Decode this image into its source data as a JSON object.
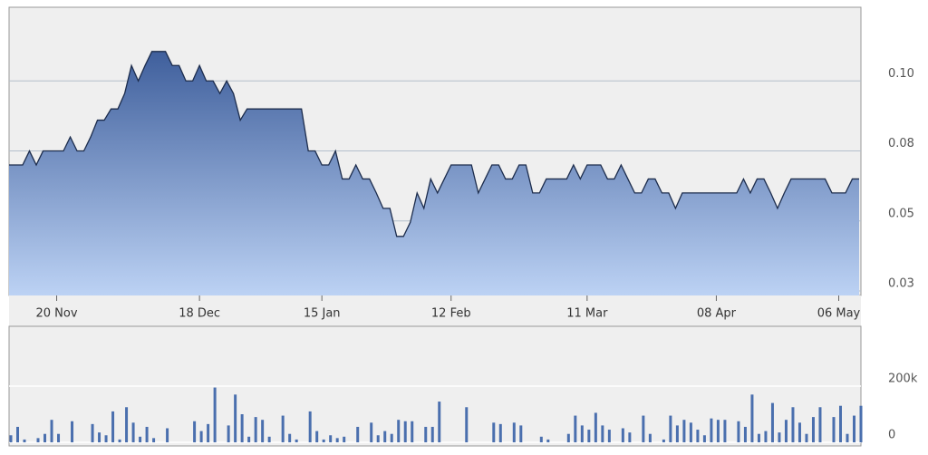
{
  "chart_data": [
    {
      "type": "area",
      "color": "#3f5f9c",
      "line_color": "#1c2c4c",
      "grid": true,
      "categories": [
        null,
        null,
        null,
        null,
        null,
        null,
        null,
        "20 Nov",
        null,
        null,
        null,
        null,
        null,
        null,
        null,
        null,
        null,
        null,
        null,
        null,
        null,
        null,
        null,
        null,
        null,
        null,
        null,
        null,
        "18 Dec",
        null,
        null,
        null,
        null,
        null,
        null,
        null,
        null,
        null,
        null,
        null,
        null,
        null,
        null,
        null,
        null,
        null,
        "15 Jan",
        null,
        null,
        null,
        null,
        null,
        null,
        null,
        null,
        null,
        null,
        null,
        null,
        null,
        null,
        null,
        null,
        null,
        null,
        "12 Feb",
        null,
        null,
        null,
        null,
        null,
        null,
        null,
        null,
        null,
        null,
        null,
        null,
        null,
        null,
        null,
        null,
        null,
        null,
        null,
        "11 Mar",
        null,
        null,
        null,
        null,
        null,
        null,
        null,
        null,
        null,
        null,
        null,
        null,
        null,
        null,
        null,
        null,
        null,
        null,
        "08 Apr",
        null,
        null,
        null,
        null,
        null,
        null,
        null,
        null,
        null,
        null,
        null,
        null,
        null,
        null,
        null,
        null,
        null,
        "06 May",
        null,
        null,
        null
      ],
      "values": [
        0.07,
        0.07,
        0.07,
        0.075,
        0.07,
        0.075,
        0.075,
        0.075,
        0.075,
        0.08,
        0.075,
        0.075,
        0.08,
        0.086,
        0.086,
        0.09,
        0.09,
        0.0955,
        0.1055,
        0.1,
        0.1055,
        0.1105,
        0.1105,
        0.1105,
        0.1055,
        0.1055,
        0.1,
        0.1,
        0.1055,
        0.1,
        0.1,
        0.0955,
        0.1,
        0.0955,
        0.086,
        0.09,
        0.09,
        0.09,
        0.09,
        0.09,
        0.09,
        0.09,
        0.09,
        0.09,
        0.075,
        0.075,
        0.07,
        0.07,
        0.075,
        0.065,
        0.065,
        0.07,
        0.065,
        0.065,
        0.06,
        0.0545,
        0.0545,
        0.0445,
        0.0445,
        0.0495,
        0.06,
        0.0545,
        0.065,
        0.06,
        0.065,
        0.07,
        0.07,
        0.07,
        0.07,
        0.06,
        0.065,
        0.07,
        0.07,
        0.065,
        0.065,
        0.07,
        0.07,
        0.06,
        0.06,
        0.065,
        0.065,
        0.065,
        0.065,
        0.07,
        0.065,
        0.07,
        0.07,
        0.07,
        0.065,
        0.065,
        0.07,
        0.065,
        0.06,
        0.06,
        0.065,
        0.065,
        0.06,
        0.06,
        0.0545,
        0.06,
        0.06,
        0.06,
        0.06,
        0.06,
        0.06,
        0.06,
        0.06,
        0.06,
        0.065,
        0.06,
        0.065,
        0.065,
        0.06,
        0.0545,
        0.06,
        0.065,
        0.065,
        0.065,
        0.065,
        0.065,
        0.065,
        0.06,
        0.06,
        0.06,
        0.065,
        0.065
      ],
      "ylim": [
        0.0234,
        0.1263
      ],
      "yticks": [
        {
          "value": 0.025,
          "label": "0.03"
        },
        {
          "value": 0.05,
          "label": "0.05"
        },
        {
          "value": 0.075,
          "label": "0.08"
        },
        {
          "value": 0.1,
          "label": "0.10"
        }
      ]
    },
    {
      "type": "bar",
      "color": "#4a6fae",
      "grid": true,
      "values": [
        25000,
        55000,
        10000,
        0,
        15000,
        30000,
        80000,
        30000,
        0,
        75000,
        0,
        0,
        65000,
        35000,
        25000,
        110000,
        10000,
        125000,
        70000,
        20000,
        55000,
        15000,
        0,
        50000,
        0,
        0,
        0,
        75000,
        40000,
        65000,
        195000,
        0,
        60000,
        170000,
        100000,
        20000,
        90000,
        80000,
        20000,
        0,
        95000,
        30000,
        10000,
        0,
        110000,
        40000,
        10000,
        25000,
        15000,
        20000,
        0,
        55000,
        0,
        70000,
        25000,
        40000,
        30000,
        80000,
        75000,
        75000,
        0,
        55000,
        55000,
        145000,
        0,
        0,
        0,
        125000,
        0,
        0,
        0,
        70000,
        65000,
        0,
        70000,
        60000,
        0,
        0,
        20000,
        10000,
        0,
        0,
        30000,
        95000,
        60000,
        45000,
        105000,
        60000,
        45000,
        0,
        50000,
        35000,
        0,
        95000,
        30000,
        0,
        10000,
        95000,
        60000,
        80000,
        70000,
        45000,
        25000,
        85000,
        80000,
        80000,
        0,
        75000,
        55000,
        170000,
        30000,
        40000,
        140000,
        35000,
        80000,
        125000,
        70000,
        30000,
        90000,
        125000,
        0,
        90000,
        130000,
        30000,
        95000,
        130000
      ],
      "ylim": [
        0,
        413000
      ],
      "yticks": [
        0,
        {
          "value": 200000,
          "label": "200k"
        }
      ]
    }
  ]
}
